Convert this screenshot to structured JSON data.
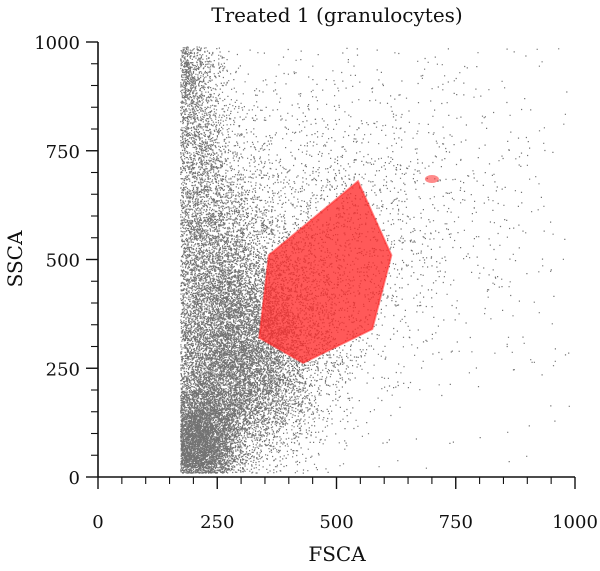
{
  "chart_data": {
    "type": "scatter",
    "title": "Treated 1 (granulocytes)",
    "xlabel": "FSCA",
    "ylabel": "SSCA",
    "xlim": [
      0,
      1000
    ],
    "ylim": [
      0,
      1000
    ],
    "x_ticks": [
      "0",
      "250",
      "500",
      "750",
      "1000"
    ],
    "y_ticks": [
      "0",
      "250",
      "500",
      "750",
      "1000"
    ],
    "grid": false,
    "point_color": "#000000",
    "gate": {
      "color": "#ff2a2a",
      "vertices": [
        [
          545,
          680
        ],
        [
          615,
          510
        ],
        [
          575,
          340
        ],
        [
          430,
          262
        ],
        [
          338,
          320
        ],
        [
          358,
          510
        ]
      ],
      "extra_region": [
        [
          700,
          685
        ]
      ]
    },
    "density": [
      {
        "x": 205,
        "y": 75,
        "count": 6500,
        "sx": 45,
        "sy": 70
      },
      {
        "x": 280,
        "y": 240,
        "count": 6500,
        "sx": 80,
        "sy": 110
      },
      {
        "x": 240,
        "y": 450,
        "count": 4500,
        "sx": 70,
        "sy": 150
      },
      {
        "x": 340,
        "y": 330,
        "count": 2600,
        "sx": 90,
        "sy": 120
      },
      {
        "x": 200,
        "y": 750,
        "count": 2600,
        "sx": 40,
        "sy": 170
      },
      {
        "x": 430,
        "y": 520,
        "count": 2000,
        "sx": 130,
        "sy": 180
      },
      {
        "x": 180,
        "y": 930,
        "count": 600,
        "sx": 25,
        "sy": 50
      },
      {
        "x": 620,
        "y": 600,
        "count": 1100,
        "sx": 220,
        "sy": 250
      }
    ]
  }
}
